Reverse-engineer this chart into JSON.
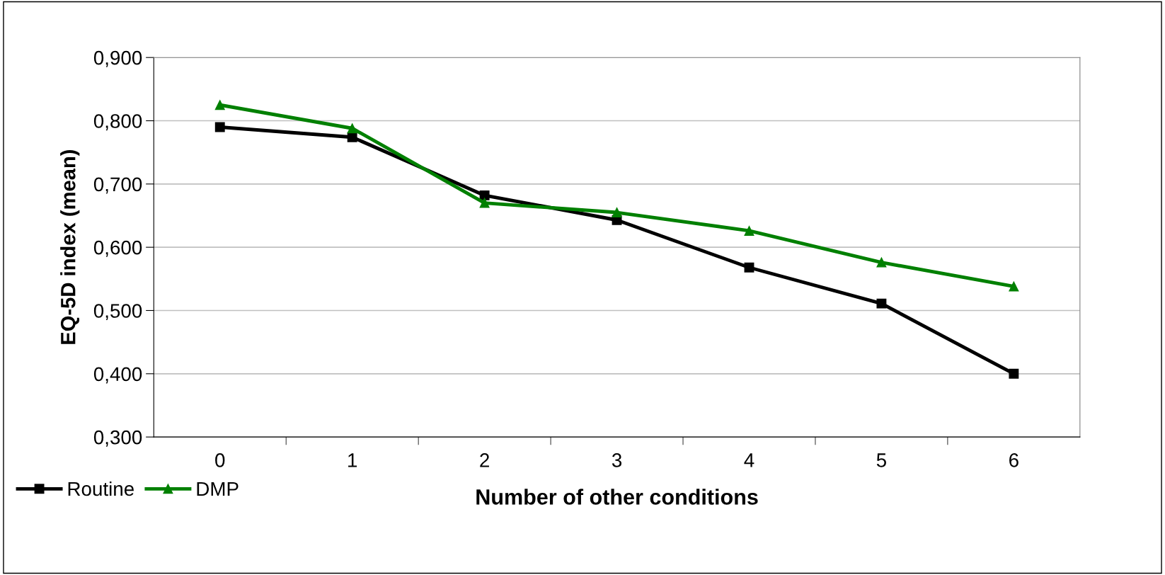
{
  "chart_data": {
    "type": "line",
    "xlabel": "Number of other conditions",
    "ylabel": "EQ-5D index (mean)",
    "categories": [
      "0",
      "1",
      "2",
      "3",
      "4",
      "5",
      "6"
    ],
    "series": [
      {
        "name": "Routine",
        "color": "#000000",
        "marker": "square",
        "values": [
          0.79,
          0.774,
          0.682,
          0.643,
          0.568,
          0.511,
          0.4
        ]
      },
      {
        "name": "DMP",
        "color": "#008000",
        "marker": "triangle",
        "values": [
          0.825,
          0.788,
          0.67,
          0.655,
          0.626,
          0.576,
          0.538
        ]
      }
    ],
    "ylim": [
      0.3,
      0.9
    ],
    "yticks": [
      {
        "value": 0.3,
        "label": "0,300"
      },
      {
        "value": 0.4,
        "label": "0,400"
      },
      {
        "value": 0.5,
        "label": "0,500"
      },
      {
        "value": 0.6,
        "label": "0,600"
      },
      {
        "value": 0.7,
        "label": "0,700"
      },
      {
        "value": 0.8,
        "label": "0,800"
      },
      {
        "value": 0.9,
        "label": "0,900"
      }
    ],
    "grid": "y",
    "legend": "bottom left",
    "line_style": "solid"
  }
}
